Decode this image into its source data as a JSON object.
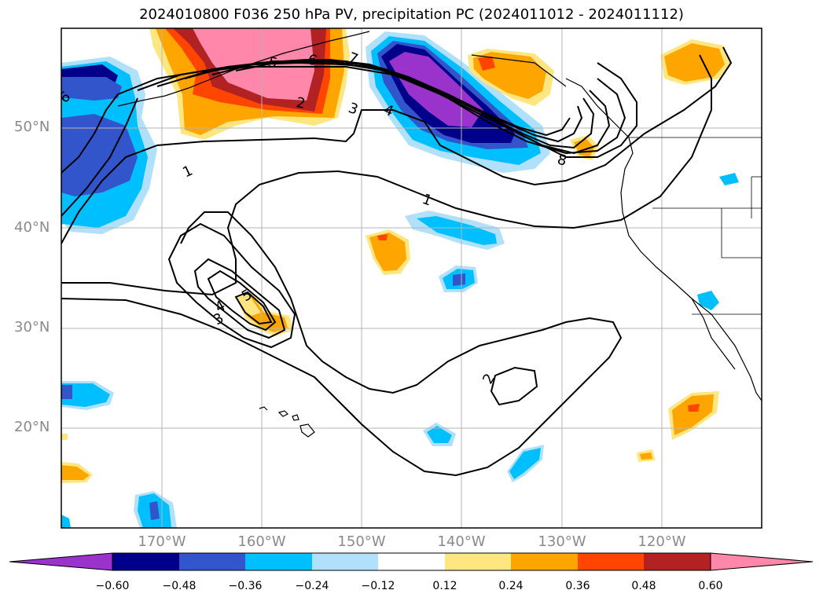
{
  "title": "2024010800 F036 250 hPa PV, precipitation PC (2024011012 - 2024011112)",
  "map": {
    "lat_labels": [
      "50°N",
      "40°N",
      "30°N",
      "20°N"
    ],
    "lon_labels": [
      "170°W",
      "160°W",
      "150°W",
      "140°W",
      "130°W",
      "120°W"
    ],
    "region": "North Pacific Ocean, Hawaiian Islands to North American west coast"
  },
  "fields": {
    "filled": "precipitation PC anomaly (shaded)",
    "contours": "250 hPa PV (PVU)",
    "contour_labels": [
      "1",
      "2",
      "3",
      "4",
      "5",
      "6",
      "7",
      "8",
      "1",
      "3",
      "4",
      "5",
      "2"
    ]
  },
  "colorbar": {
    "tick_labels": [
      "−0.60",
      "−0.48",
      "−0.36",
      "−0.24",
      "−0.12",
      "0.12",
      "0.24",
      "0.36",
      "0.48",
      "0.60"
    ],
    "colors": [
      "#9933cc",
      "#00008b",
      "#3355cc",
      "#00bfff",
      "#b0e0fa",
      "#ffffff",
      "#ffe680",
      "#ffa500",
      "#ff4500",
      "#b22222",
      "#ff88aa"
    ]
  }
}
